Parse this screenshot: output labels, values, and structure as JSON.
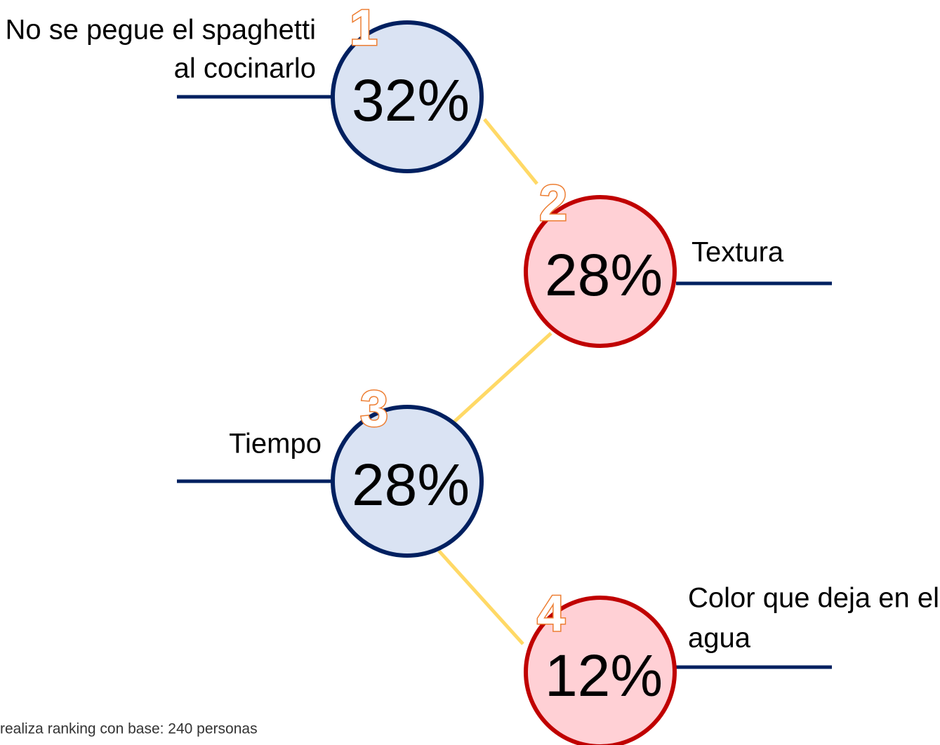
{
  "nodes": [
    {
      "rank": "1",
      "label": [
        "No se pegue el spaghetti",
        "al cocinarlo"
      ],
      "value": "32%"
    },
    {
      "rank": "2",
      "label": [
        "Textura"
      ],
      "value": "28%"
    },
    {
      "rank": "3",
      "label": [
        "Tiempo"
      ],
      "value": "28%"
    },
    {
      "rank": "4",
      "label": [
        "Color que deja en el",
        "agua"
      ],
      "value": "12%"
    }
  ],
  "footnote": "realiza ranking con base: 240 personas"
}
